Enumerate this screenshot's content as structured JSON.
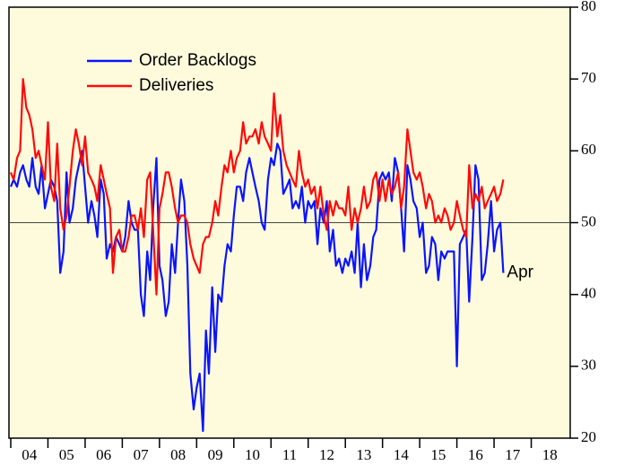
{
  "chart_data": {
    "type": "line",
    "x": [
      2004.0,
      2004.08,
      2004.17,
      2004.25,
      2004.33,
      2004.42,
      2004.5,
      2004.58,
      2004.67,
      2004.75,
      2004.83,
      2004.92,
      2005.0,
      2005.08,
      2005.17,
      2005.25,
      2005.33,
      2005.42,
      2005.5,
      2005.58,
      2005.67,
      2005.75,
      2005.83,
      2005.92,
      2006.0,
      2006.08,
      2006.17,
      2006.25,
      2006.33,
      2006.42,
      2006.5,
      2006.58,
      2006.67,
      2006.75,
      2006.83,
      2006.92,
      2007.0,
      2007.08,
      2007.17,
      2007.25,
      2007.33,
      2007.42,
      2007.5,
      2007.58,
      2007.67,
      2007.75,
      2007.83,
      2007.92,
      2008.0,
      2008.08,
      2008.17,
      2008.25,
      2008.33,
      2008.42,
      2008.5,
      2008.58,
      2008.67,
      2008.75,
      2008.83,
      2008.92,
      2009.0,
      2009.08,
      2009.17,
      2009.25,
      2009.33,
      2009.42,
      2009.5,
      2009.58,
      2009.67,
      2009.75,
      2009.83,
      2009.92,
      2010.0,
      2010.08,
      2010.17,
      2010.25,
      2010.33,
      2010.42,
      2010.5,
      2010.58,
      2010.67,
      2010.75,
      2010.83,
      2010.92,
      2011.0,
      2011.08,
      2011.17,
      2011.25,
      2011.33,
      2011.42,
      2011.5,
      2011.58,
      2011.67,
      2011.75,
      2011.83,
      2011.92,
      2012.0,
      2012.08,
      2012.17,
      2012.25,
      2012.33,
      2012.42,
      2012.5,
      2012.58,
      2012.67,
      2012.75,
      2012.83,
      2012.92,
      2013.0,
      2013.08,
      2013.17,
      2013.25,
      2013.33,
      2013.42,
      2013.5,
      2013.58,
      2013.67,
      2013.75,
      2013.83,
      2013.92,
      2014.0,
      2014.08,
      2014.17,
      2014.25,
      2014.33,
      2014.42,
      2014.5,
      2014.58,
      2014.67,
      2014.75,
      2014.83,
      2014.92,
      2015.0,
      2015.08,
      2015.17,
      2015.25,
      2015.33,
      2015.42,
      2015.5,
      2015.58,
      2015.67,
      2015.75,
      2015.83,
      2015.92,
      2016.0,
      2016.08,
      2016.17,
      2016.25,
      2016.33,
      2016.42,
      2016.5,
      2016.58,
      2016.67,
      2016.75,
      2016.83,
      2016.92,
      2017.0,
      2017.08,
      2017.17,
      2017.25
    ],
    "series": [
      {
        "name": "Order Backlogs",
        "color": "#0a14ff",
        "values": [
          55,
          56,
          55,
          57,
          58,
          56,
          55,
          59,
          55,
          54,
          58,
          52,
          54,
          56,
          55,
          53,
          43,
          46,
          57,
          50,
          52,
          56,
          58,
          60,
          55,
          50,
          53,
          51,
          48,
          56,
          54,
          45,
          47,
          46,
          48,
          47,
          46,
          48,
          53,
          50,
          49,
          49,
          40,
          37,
          46,
          42,
          52,
          59,
          44,
          42,
          37,
          39,
          47,
          43,
          50,
          56,
          53,
          44,
          29,
          24,
          27,
          29,
          21,
          35,
          29,
          41,
          32,
          40,
          39,
          44,
          47,
          46,
          51,
          55,
          55,
          53,
          57,
          59,
          57,
          55,
          53,
          50,
          49,
          56,
          59,
          58,
          61,
          60,
          54,
          55,
          56,
          52,
          53,
          52,
          55,
          50,
          53,
          52,
          53,
          47,
          52,
          50,
          53,
          46,
          49,
          44,
          45,
          43,
          45,
          44,
          46,
          43,
          50,
          41,
          47,
          42,
          44,
          48,
          49,
          56,
          57,
          56,
          57,
          53,
          59,
          57,
          52,
          46,
          58,
          56,
          53,
          52,
          48,
          50,
          43,
          44,
          48,
          47,
          42,
          46,
          45,
          46,
          46,
          46,
          30,
          47,
          48,
          49,
          39,
          48,
          58,
          56,
          42,
          43,
          47,
          53,
          46,
          49,
          50,
          43
        ]
      },
      {
        "name": "Deliveries",
        "color": "#ff0a0a",
        "values": [
          57,
          56,
          59,
          60,
          70,
          66,
          65,
          63,
          59,
          60,
          58,
          56,
          64,
          55,
          53,
          61,
          52,
          49,
          51,
          55,
          60,
          63,
          61,
          58,
          62,
          57,
          56,
          55,
          53,
          58,
          56,
          54,
          52,
          43,
          48,
          49,
          46,
          46,
          48,
          51,
          51,
          49,
          52,
          48,
          56,
          57,
          49,
          40,
          52,
          54,
          57,
          57,
          55,
          52,
          50,
          51,
          51,
          50,
          47,
          45,
          44,
          43,
          47,
          48,
          48,
          50,
          53,
          51,
          55,
          58,
          57,
          60,
          57,
          59,
          60,
          64,
          61,
          62,
          62,
          63,
          61,
          64,
          62,
          61,
          60,
          68,
          62,
          65,
          60,
          58,
          57,
          56,
          55,
          60,
          57,
          55,
          56,
          54,
          55,
          52,
          55,
          51,
          49,
          53,
          51,
          53,
          52,
          52,
          51,
          55,
          49,
          52,
          50,
          52,
          55,
          52,
          53,
          56,
          57,
          53,
          56,
          53,
          56,
          54,
          55,
          57,
          52,
          55,
          63,
          60,
          57,
          56,
          57,
          55,
          52,
          54,
          53,
          50,
          51,
          50,
          52,
          51,
          49,
          50,
          53,
          51,
          49,
          48,
          58,
          52,
          54,
          53,
          55,
          52,
          53,
          54,
          55,
          53,
          54,
          56
        ]
      }
    ],
    "annotation": "Apr",
    "reference_line": 50,
    "xlim": [
      2004,
      2019
    ],
    "xticks": [
      {
        "value": 2004,
        "label": "04"
      },
      {
        "value": 2005,
        "label": "05"
      },
      {
        "value": 2006,
        "label": "06"
      },
      {
        "value": 2007,
        "label": "07"
      },
      {
        "value": 2008,
        "label": "08"
      },
      {
        "value": 2009,
        "label": "09"
      },
      {
        "value": 2010,
        "label": "10"
      },
      {
        "value": 2011,
        "label": "11"
      },
      {
        "value": 2012,
        "label": "12"
      },
      {
        "value": 2013,
        "label": "13"
      },
      {
        "value": 2014,
        "label": "14"
      },
      {
        "value": 2015,
        "label": "15"
      },
      {
        "value": 2016,
        "label": "16"
      },
      {
        "value": 2017,
        "label": "17"
      },
      {
        "value": 2018,
        "label": "18"
      }
    ],
    "ylim": [
      20,
      80
    ],
    "yticks": [
      20,
      30,
      40,
      50,
      60,
      70,
      80
    ],
    "legend": "upper left"
  }
}
